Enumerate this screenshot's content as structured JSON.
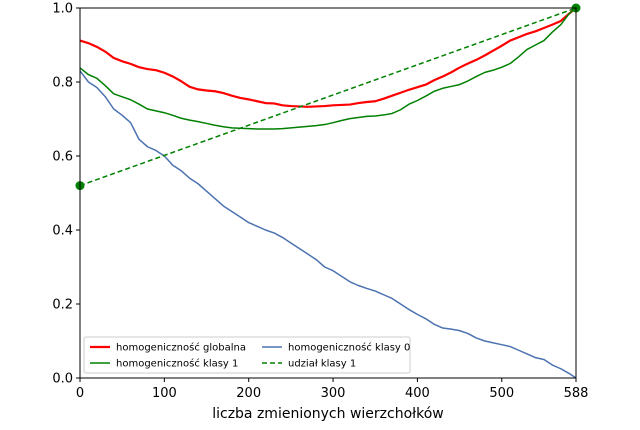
{
  "chart_data": {
    "type": "line",
    "title": "",
    "xlabel": "liczba zmienionych wierzchołków",
    "ylabel": "",
    "xlim": [
      0,
      588
    ],
    "ylim": [
      0.0,
      1.0
    ],
    "xticks": [
      0,
      100,
      200,
      300,
      400,
      500,
      588
    ],
    "xtick_labels": [
      "0",
      "100",
      "200",
      "300",
      "400",
      "500",
      "588"
    ],
    "yticks": [
      0.0,
      0.2,
      0.4,
      0.6,
      0.8,
      1.0
    ],
    "ytick_labels": [
      "0.0",
      "0.2",
      "0.4",
      "0.6",
      "0.8",
      "1.0"
    ],
    "grid": false,
    "legend_position": "bottom-left",
    "series": [
      {
        "name": "homogeniczność globalna",
        "color": "#ff0000",
        "style": "solid",
        "x": [
          0,
          10,
          20,
          30,
          40,
          50,
          60,
          70,
          80,
          90,
          100,
          110,
          120,
          130,
          140,
          150,
          160,
          170,
          180,
          190,
          200,
          210,
          220,
          230,
          240,
          250,
          260,
          270,
          280,
          290,
          300,
          310,
          320,
          330,
          340,
          350,
          360,
          370,
          380,
          390,
          400,
          410,
          420,
          430,
          440,
          450,
          460,
          470,
          480,
          490,
          500,
          510,
          520,
          530,
          540,
          550,
          560,
          570,
          580,
          588
        ],
        "y": [
          0.912,
          0.905,
          0.895,
          0.882,
          0.865,
          0.856,
          0.849,
          0.84,
          0.835,
          0.832,
          0.825,
          0.815,
          0.802,
          0.787,
          0.78,
          0.777,
          0.775,
          0.77,
          0.763,
          0.757,
          0.753,
          0.748,
          0.743,
          0.742,
          0.737,
          0.735,
          0.734,
          0.733,
          0.734,
          0.735,
          0.737,
          0.738,
          0.739,
          0.743,
          0.746,
          0.748,
          0.755,
          0.763,
          0.771,
          0.779,
          0.786,
          0.793,
          0.805,
          0.815,
          0.826,
          0.839,
          0.85,
          0.86,
          0.872,
          0.885,
          0.898,
          0.912,
          0.921,
          0.93,
          0.937,
          0.946,
          0.955,
          0.965,
          0.985,
          1.0
        ]
      },
      {
        "name": "homogeniczność klasy 1",
        "color": "#008000",
        "style": "solid",
        "x": [
          0,
          10,
          20,
          30,
          40,
          50,
          60,
          70,
          80,
          90,
          100,
          110,
          120,
          130,
          140,
          150,
          160,
          170,
          180,
          190,
          200,
          210,
          220,
          230,
          240,
          250,
          260,
          270,
          280,
          290,
          300,
          310,
          320,
          330,
          340,
          350,
          360,
          370,
          380,
          390,
          400,
          410,
          420,
          430,
          440,
          450,
          460,
          470,
          480,
          490,
          500,
          510,
          520,
          530,
          540,
          550,
          560,
          570,
          580,
          588
        ],
        "y": [
          0.838,
          0.82,
          0.81,
          0.79,
          0.768,
          0.76,
          0.752,
          0.74,
          0.727,
          0.722,
          0.717,
          0.71,
          0.702,
          0.697,
          0.693,
          0.688,
          0.683,
          0.679,
          0.676,
          0.675,
          0.674,
          0.673,
          0.673,
          0.673,
          0.674,
          0.676,
          0.678,
          0.68,
          0.682,
          0.685,
          0.69,
          0.696,
          0.701,
          0.704,
          0.707,
          0.708,
          0.711,
          0.715,
          0.725,
          0.74,
          0.75,
          0.762,
          0.775,
          0.783,
          0.788,
          0.793,
          0.803,
          0.815,
          0.826,
          0.832,
          0.84,
          0.85,
          0.868,
          0.888,
          0.9,
          0.912,
          0.935,
          0.955,
          0.985,
          1.0
        ]
      },
      {
        "name": "homogeniczność klasy 0",
        "color": "#4c72b0",
        "style": "solid",
        "x": [
          0,
          10,
          20,
          30,
          40,
          50,
          60,
          70,
          80,
          90,
          100,
          110,
          120,
          130,
          140,
          150,
          160,
          170,
          180,
          190,
          200,
          210,
          220,
          230,
          240,
          250,
          260,
          270,
          280,
          290,
          300,
          310,
          320,
          330,
          340,
          350,
          360,
          370,
          380,
          390,
          400,
          410,
          420,
          430,
          440,
          450,
          460,
          470,
          480,
          490,
          500,
          510,
          520,
          530,
          540,
          550,
          560,
          570,
          580,
          588
        ],
        "y": [
          0.83,
          0.8,
          0.785,
          0.76,
          0.727,
          0.71,
          0.69,
          0.645,
          0.625,
          0.615,
          0.6,
          0.575,
          0.56,
          0.54,
          0.525,
          0.505,
          0.485,
          0.465,
          0.45,
          0.435,
          0.42,
          0.41,
          0.4,
          0.392,
          0.38,
          0.365,
          0.35,
          0.335,
          0.32,
          0.3,
          0.29,
          0.275,
          0.26,
          0.25,
          0.242,
          0.235,
          0.225,
          0.215,
          0.2,
          0.185,
          0.172,
          0.16,
          0.145,
          0.135,
          0.132,
          0.128,
          0.12,
          0.108,
          0.1,
          0.095,
          0.09,
          0.085,
          0.075,
          0.065,
          0.055,
          0.05,
          0.035,
          0.025,
          0.012,
          0.0
        ]
      },
      {
        "name": "udział klasy 1",
        "color": "#008000",
        "style": "dashed",
        "x": [
          0,
          588
        ],
        "y": [
          0.52,
          1.0
        ]
      }
    ],
    "markers": [
      {
        "x": 0,
        "y": 0.52,
        "color": "#008000"
      },
      {
        "x": 588,
        "y": 1.0,
        "color": "#008000"
      }
    ]
  }
}
